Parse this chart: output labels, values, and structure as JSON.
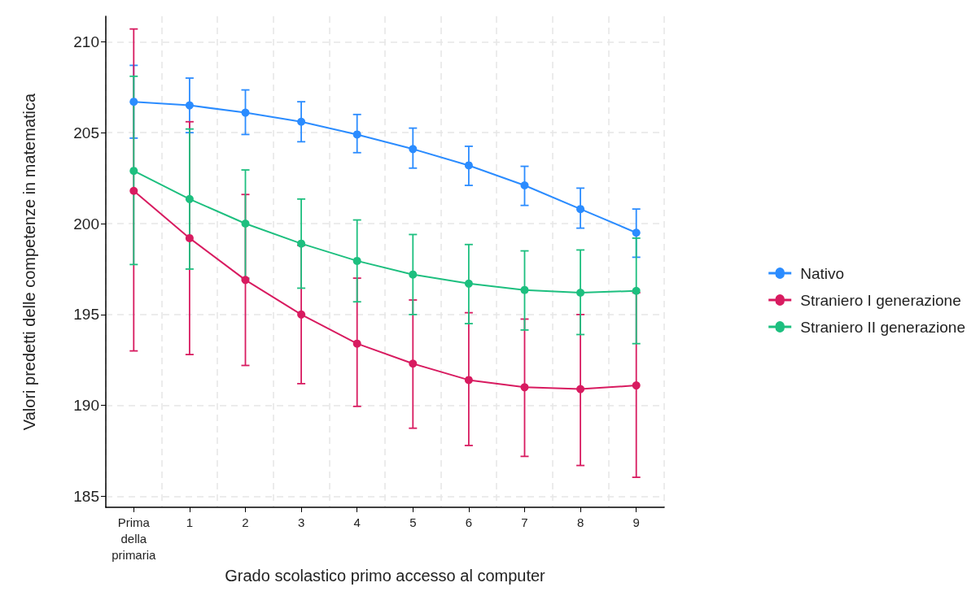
{
  "chart_data": {
    "type": "line",
    "xlabel": "Grado scolastico primo accesso al computer",
    "ylabel": "Valori predetti delle competenze in matematica",
    "categories": [
      "Prima della primaria",
      "1",
      "2",
      "3",
      "4",
      "5",
      "6",
      "7",
      "8",
      "9"
    ],
    "series": [
      {
        "name": "Nativo",
        "color": "#2b8cff",
        "values": [
          206.7,
          206.5,
          206.1,
          205.6,
          204.9,
          204.1,
          203.2,
          202.1,
          200.8,
          199.5
        ],
        "errors": [
          [
            204.7,
            208.7
          ],
          [
            205.0,
            208.0
          ],
          [
            204.9,
            207.35
          ],
          [
            204.5,
            206.7
          ],
          [
            203.9,
            206.0
          ],
          [
            203.05,
            205.25
          ],
          [
            202.1,
            204.25
          ],
          [
            201.0,
            203.15
          ],
          [
            199.75,
            201.95
          ],
          [
            198.15,
            200.8
          ]
        ]
      },
      {
        "name": "Straniero I generazione",
        "color": "#d81b60",
        "values": [
          201.8,
          199.2,
          196.9,
          195.0,
          193.4,
          192.3,
          191.4,
          191.0,
          190.9,
          191.1
        ],
        "errors": [
          [
            193.0,
            210.7
          ],
          [
            192.8,
            205.6
          ],
          [
            192.2,
            201.6
          ],
          [
            191.2,
            198.8
          ],
          [
            189.95,
            197.0
          ],
          [
            188.75,
            195.8
          ],
          [
            187.8,
            195.1
          ],
          [
            187.2,
            194.75
          ],
          [
            186.7,
            195.0
          ],
          [
            186.05,
            196.2
          ]
        ]
      },
      {
        "name": "Straniero II generazione",
        "color": "#1dbf7f",
        "values": [
          202.9,
          201.35,
          200.0,
          198.9,
          197.95,
          197.2,
          196.7,
          196.35,
          196.2,
          196.3
        ],
        "errors": [
          [
            197.75,
            208.1
          ],
          [
            197.5,
            205.2
          ],
          [
            197.0,
            202.95
          ],
          [
            196.45,
            201.35
          ],
          [
            195.7,
            200.2
          ],
          [
            195.0,
            199.4
          ],
          [
            194.5,
            198.85
          ],
          [
            194.15,
            198.5
          ],
          [
            193.9,
            198.55
          ],
          [
            193.4,
            199.2
          ]
        ]
      }
    ],
    "ylim": [
      184.4,
      211.4
    ],
    "yticks": [
      185,
      190,
      195,
      200,
      205,
      210
    ],
    "grid": true,
    "legend": "right",
    "marker": "circle",
    "line_style": "solid"
  }
}
